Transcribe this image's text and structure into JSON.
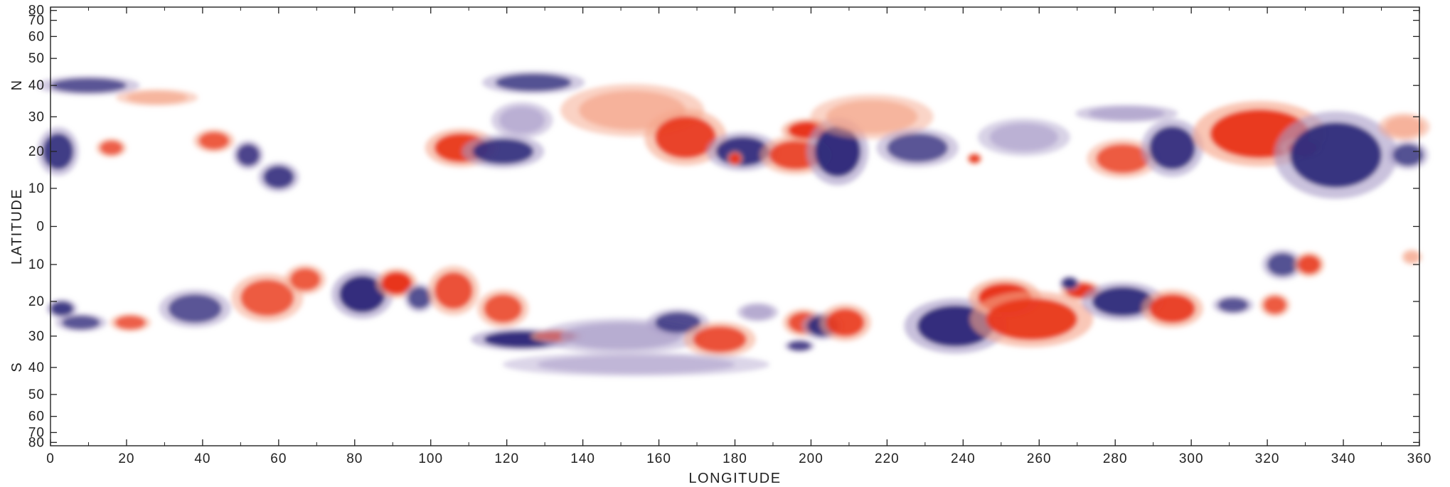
{
  "chart_data": {
    "type": "heatmap",
    "title": "",
    "xlabel": "LONGITUDE",
    "ylabel": "LATITUDE",
    "north_label": "N",
    "south_label": "S",
    "xlim": [
      0,
      360
    ],
    "ylim": [
      -90,
      90
    ],
    "x_ticks": [
      0,
      20,
      40,
      60,
      80,
      100,
      120,
      140,
      160,
      180,
      200,
      220,
      240,
      260,
      280,
      300,
      320,
      340,
      360
    ],
    "y_ticks": [
      {
        "label": "80",
        "lat": 80
      },
      {
        "label": "70",
        "lat": 70
      },
      {
        "label": "60",
        "lat": 60
      },
      {
        "label": "50",
        "lat": 50
      },
      {
        "label": "40",
        "lat": 40
      },
      {
        "label": "30",
        "lat": 30
      },
      {
        "label": "20",
        "lat": 20
      },
      {
        "label": "10",
        "lat": 10
      },
      {
        "label": "0",
        "lat": 0
      },
      {
        "label": "10",
        "lat": -10
      },
      {
        "label": "20",
        "lat": -20
      },
      {
        "label": "30",
        "lat": -30
      },
      {
        "label": "40",
        "lat": -40
      },
      {
        "label": "50",
        "lat": -50
      },
      {
        "label": "60",
        "lat": -60
      },
      {
        "label": "70",
        "lat": -70
      },
      {
        "label": "80",
        "lat": -80
      }
    ],
    "grid": false,
    "colors": {
      "positive": "#e8361a",
      "positive_light": "#f5a58a",
      "negative": "#2e2a7a",
      "negative_light": "#a99cc8"
    },
    "regions": [
      {
        "lon": 2,
        "lat": 20,
        "rx": 4,
        "ry": 5,
        "polarity": "negative",
        "strength": 0.8
      },
      {
        "lon": 10,
        "lat": 40,
        "rx": 10,
        "ry": 2.5,
        "polarity": "negative",
        "strength": 0.55
      },
      {
        "lon": 28,
        "lat": 36,
        "rx": 8,
        "ry": 2,
        "polarity": "positive",
        "strength": 0.45
      },
      {
        "lon": 16,
        "lat": 21,
        "rx": 3,
        "ry": 2,
        "polarity": "positive",
        "strength": 0.55
      },
      {
        "lon": 43,
        "lat": 23,
        "rx": 4,
        "ry": 2.5,
        "polarity": "positive",
        "strength": 0.6
      },
      {
        "lon": 52,
        "lat": 19,
        "rx": 3,
        "ry": 3,
        "polarity": "negative",
        "strength": 0.7
      },
      {
        "lon": 60,
        "lat": 13,
        "rx": 4,
        "ry": 3,
        "polarity": "negative",
        "strength": 0.75
      },
      {
        "lon": 108,
        "lat": 21,
        "rx": 7,
        "ry": 4,
        "polarity": "positive",
        "strength": 0.9
      },
      {
        "lon": 119,
        "lat": 20,
        "rx": 8,
        "ry": 3.5,
        "polarity": "negative",
        "strength": 0.8
      },
      {
        "lon": 127,
        "lat": 41,
        "rx": 10,
        "ry": 3,
        "polarity": "negative",
        "strength": 0.6
      },
      {
        "lon": 124,
        "lat": 29,
        "rx": 6,
        "ry": 4,
        "polarity": "negative",
        "strength": 0.4
      },
      {
        "lon": 153,
        "lat": 32,
        "rx": 14,
        "ry": 6,
        "polarity": "positive",
        "strength": 0.5
      },
      {
        "lon": 167,
        "lat": 24,
        "rx": 8,
        "ry": 6,
        "polarity": "positive",
        "strength": 0.85
      },
      {
        "lon": 182,
        "lat": 20,
        "rx": 7,
        "ry": 4,
        "polarity": "negative",
        "strength": 0.85
      },
      {
        "lon": 180,
        "lat": 18,
        "rx": 1.5,
        "ry": 1.5,
        "polarity": "positive",
        "strength": 1.0
      },
      {
        "lon": 196,
        "lat": 19,
        "rx": 7,
        "ry": 4,
        "polarity": "positive",
        "strength": 0.75
      },
      {
        "lon": 199,
        "lat": 26,
        "rx": 5,
        "ry": 2.5,
        "polarity": "positive",
        "strength": 1.0
      },
      {
        "lon": 207,
        "lat": 20,
        "rx": 6,
        "ry": 7,
        "polarity": "negative",
        "strength": 0.95
      },
      {
        "lon": 216,
        "lat": 30,
        "rx": 12,
        "ry": 5,
        "polarity": "positive",
        "strength": 0.45
      },
      {
        "lon": 228,
        "lat": 21,
        "rx": 8,
        "ry": 4,
        "polarity": "negative",
        "strength": 0.55
      },
      {
        "lon": 243,
        "lat": 18,
        "rx": 1.5,
        "ry": 1.2,
        "polarity": "positive",
        "strength": 0.9
      },
      {
        "lon": 256,
        "lat": 24,
        "rx": 9,
        "ry": 4,
        "polarity": "negative",
        "strength": 0.35
      },
      {
        "lon": 283,
        "lat": 31,
        "rx": 10,
        "ry": 2,
        "polarity": "negative",
        "strength": 0.5
      },
      {
        "lon": 282,
        "lat": 18,
        "rx": 7,
        "ry": 4,
        "polarity": "positive",
        "strength": 0.6
      },
      {
        "lon": 295,
        "lat": 21,
        "rx": 6,
        "ry": 6,
        "polarity": "negative",
        "strength": 0.85
      },
      {
        "lon": 318,
        "lat": 25,
        "rx": 13,
        "ry": 7,
        "polarity": "positive",
        "strength": 0.95
      },
      {
        "lon": 329,
        "lat": 21,
        "rx": 4,
        "ry": 2,
        "polarity": "positive",
        "strength": 1.0
      },
      {
        "lon": 338,
        "lat": 19,
        "rx": 12,
        "ry": 9,
        "polarity": "negative",
        "strength": 0.9
      },
      {
        "lon": 356,
        "lat": 27,
        "rx": 5,
        "ry": 3,
        "polarity": "positive",
        "strength": 0.5
      },
      {
        "lon": 357,
        "lat": 19,
        "rx": 4,
        "ry": 3,
        "polarity": "negative",
        "strength": 0.6
      },
      {
        "lon": 3,
        "lat": -22,
        "rx": 3,
        "ry": 2,
        "polarity": "negative",
        "strength": 0.8
      },
      {
        "lon": 8,
        "lat": -26,
        "rx": 5,
        "ry": 2,
        "polarity": "negative",
        "strength": 0.55
      },
      {
        "lon": 21,
        "lat": -26,
        "rx": 4,
        "ry": 2,
        "polarity": "positive",
        "strength": 0.55
      },
      {
        "lon": 38,
        "lat": -22,
        "rx": 7,
        "ry": 4,
        "polarity": "negative",
        "strength": 0.55
      },
      {
        "lon": 57,
        "lat": -19,
        "rx": 7,
        "ry": 5,
        "polarity": "positive",
        "strength": 0.6
      },
      {
        "lon": 67,
        "lat": -14,
        "rx": 4,
        "ry": 3,
        "polarity": "positive",
        "strength": 0.6
      },
      {
        "lon": 82,
        "lat": -18,
        "rx": 6,
        "ry": 5,
        "polarity": "negative",
        "strength": 0.95
      },
      {
        "lon": 91,
        "lat": -15,
        "rx": 4,
        "ry": 3,
        "polarity": "positive",
        "strength": 1.0
      },
      {
        "lon": 97,
        "lat": -19,
        "rx": 3,
        "ry": 3,
        "polarity": "negative",
        "strength": 0.6
      },
      {
        "lon": 106,
        "lat": -17,
        "rx": 5,
        "ry": 5,
        "polarity": "positive",
        "strength": 0.7
      },
      {
        "lon": 119,
        "lat": -22,
        "rx": 5,
        "ry": 4,
        "polarity": "positive",
        "strength": 0.65
      },
      {
        "lon": 124,
        "lat": -31,
        "rx": 10,
        "ry": 2.5,
        "polarity": "negative",
        "strength": 0.95
      },
      {
        "lon": 133,
        "lat": -30,
        "rx": 5,
        "ry": 1.5,
        "polarity": "positive",
        "strength": 1.0
      },
      {
        "lon": 150,
        "lat": -30,
        "rx": 16,
        "ry": 4,
        "polarity": "negative",
        "strength": 0.45
      },
      {
        "lon": 165,
        "lat": -26,
        "rx": 6,
        "ry": 3,
        "polarity": "negative",
        "strength": 0.65
      },
      {
        "lon": 176,
        "lat": -31,
        "rx": 7,
        "ry": 4,
        "polarity": "positive",
        "strength": 0.7
      },
      {
        "lon": 154,
        "lat": -39,
        "rx": 26,
        "ry": 3,
        "polarity": "negative",
        "strength": 0.25
      },
      {
        "lon": 186,
        "lat": -23,
        "rx": 4,
        "ry": 2,
        "polarity": "negative",
        "strength": 0.5
      },
      {
        "lon": 198,
        "lat": -26,
        "rx": 4,
        "ry": 3,
        "polarity": "positive",
        "strength": 0.7
      },
      {
        "lon": 203,
        "lat": -27,
        "rx": 4,
        "ry": 3,
        "polarity": "negative",
        "strength": 0.85
      },
      {
        "lon": 209,
        "lat": -26,
        "rx": 5,
        "ry": 4,
        "polarity": "positive",
        "strength": 0.8
      },
      {
        "lon": 197,
        "lat": -33,
        "rx": 3,
        "ry": 1.5,
        "polarity": "negative",
        "strength": 0.7
      },
      {
        "lon": 238,
        "lat": -27,
        "rx": 10,
        "ry": 6,
        "polarity": "negative",
        "strength": 0.95
      },
      {
        "lon": 251,
        "lat": -19,
        "rx": 7,
        "ry": 4,
        "polarity": "positive",
        "strength": 1.0
      },
      {
        "lon": 258,
        "lat": -25,
        "rx": 12,
        "ry": 6,
        "polarity": "positive",
        "strength": 0.9
      },
      {
        "lon": 271,
        "lat": -17,
        "rx": 4,
        "ry": 2,
        "polarity": "positive",
        "strength": 1.0
      },
      {
        "lon": 268,
        "lat": -15,
        "rx": 2,
        "ry": 1.5,
        "polarity": "negative",
        "strength": 0.9
      },
      {
        "lon": 282,
        "lat": -20,
        "rx": 8,
        "ry": 4,
        "polarity": "negative",
        "strength": 0.9
      },
      {
        "lon": 295,
        "lat": -22,
        "rx": 6,
        "ry": 4,
        "polarity": "positive",
        "strength": 0.85
      },
      {
        "lon": 311,
        "lat": -21,
        "rx": 4,
        "ry": 2,
        "polarity": "negative",
        "strength": 0.55
      },
      {
        "lon": 322,
        "lat": -21,
        "rx": 3,
        "ry": 2.5,
        "polarity": "positive",
        "strength": 0.6
      },
      {
        "lon": 324,
        "lat": -10,
        "rx": 4,
        "ry": 3,
        "polarity": "negative",
        "strength": 0.6
      },
      {
        "lon": 331,
        "lat": -10,
        "rx": 3,
        "ry": 2.5,
        "polarity": "positive",
        "strength": 0.75
      },
      {
        "lon": 358,
        "lat": -8,
        "rx": 2,
        "ry": 1.5,
        "polarity": "positive",
        "strength": 0.4
      }
    ]
  }
}
